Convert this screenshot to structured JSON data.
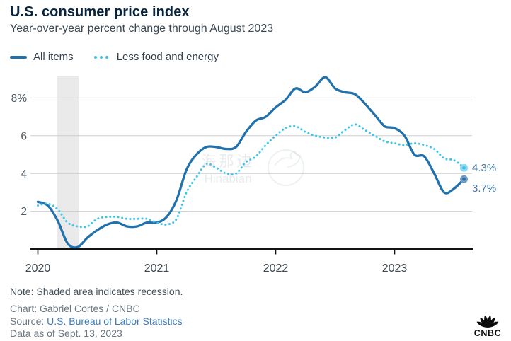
{
  "header": {
    "title": "U.S. consumer price index",
    "subtitle": "Year-over-year percent change through August 2023"
  },
  "legend": {
    "items": [
      {
        "label": "All items",
        "color": "#2171ad",
        "style": "solid"
      },
      {
        "label": "Less food and energy",
        "color": "#3ec3ea",
        "style": "dotted"
      }
    ]
  },
  "chart_data": {
    "type": "line",
    "title": "U.S. consumer price index",
    "xlabel": "",
    "ylabel": "Year-over-year percent change",
    "frequency": "monthly",
    "x_start": "2020-01",
    "x_end": "2023-08",
    "x_tick_labels": [
      "2020",
      "2021",
      "2022",
      "2023"
    ],
    "y_ticks": [
      8,
      6,
      4,
      2
    ],
    "y_tick_labels": [
      "8%",
      "6",
      "4",
      "2"
    ],
    "ylim": [
      0,
      9.2
    ],
    "grid": "horizontal",
    "legend_position": "top-left",
    "recession_band": {
      "start_month_index": 2,
      "end_month_index": 4,
      "meaning": "recession"
    },
    "series": [
      {
        "name": "All items",
        "style": "solid",
        "color": "#2171ad",
        "end_label": "3.7%",
        "end_label_color": "#4379ae",
        "dot_outer": "#6f9cc4",
        "dot_inner": "#2d68a4",
        "values": [
          2.5,
          2.3,
          1.5,
          0.3,
          0.1,
          0.6,
          1.0,
          1.3,
          1.4,
          1.2,
          1.2,
          1.4,
          1.4,
          1.7,
          2.6,
          4.2,
          5.0,
          5.4,
          5.4,
          5.3,
          5.4,
          6.2,
          6.8,
          7.0,
          7.5,
          7.9,
          8.5,
          8.3,
          8.6,
          9.1,
          8.5,
          8.3,
          8.2,
          7.7,
          7.1,
          6.5,
          6.4,
          6.0,
          5.0,
          4.9,
          4.0,
          3.0,
          3.2,
          3.7
        ]
      },
      {
        "name": "Less food and energy",
        "style": "dotted",
        "color": "#3ec3ea",
        "end_label": "4.3%",
        "end_label_color": "#4d7d9d",
        "dot_outer": "#8fd9f2",
        "dot_inner": "#34c0e9",
        "values": [
          2.3,
          2.4,
          2.1,
          1.4,
          1.2,
          1.2,
          1.6,
          1.7,
          1.7,
          1.6,
          1.6,
          1.6,
          1.4,
          1.3,
          1.6,
          3.0,
          3.8,
          4.5,
          4.3,
          4.0,
          4.0,
          4.6,
          4.9,
          5.5,
          6.0,
          6.4,
          6.5,
          6.2,
          6.0,
          5.9,
          5.9,
          6.3,
          6.6,
          6.3,
          6.0,
          5.7,
          5.6,
          5.5,
          5.6,
          5.5,
          5.3,
          4.8,
          4.7,
          4.3
        ]
      }
    ],
    "watermark": {
      "line1": "海那边",
      "line2": "Hinabian"
    }
  },
  "footer": {
    "note": "Note: Shaded area indicates recession.",
    "chart_credit": "Chart: Gabriel Cortes / CNBC",
    "source_prefix": "Source: ",
    "source_link": "U.S. Bureau of Labor Statistics",
    "data_as_of": "Data as of Sept. 13, 2023"
  },
  "logo": {
    "text": "CNBC"
  }
}
